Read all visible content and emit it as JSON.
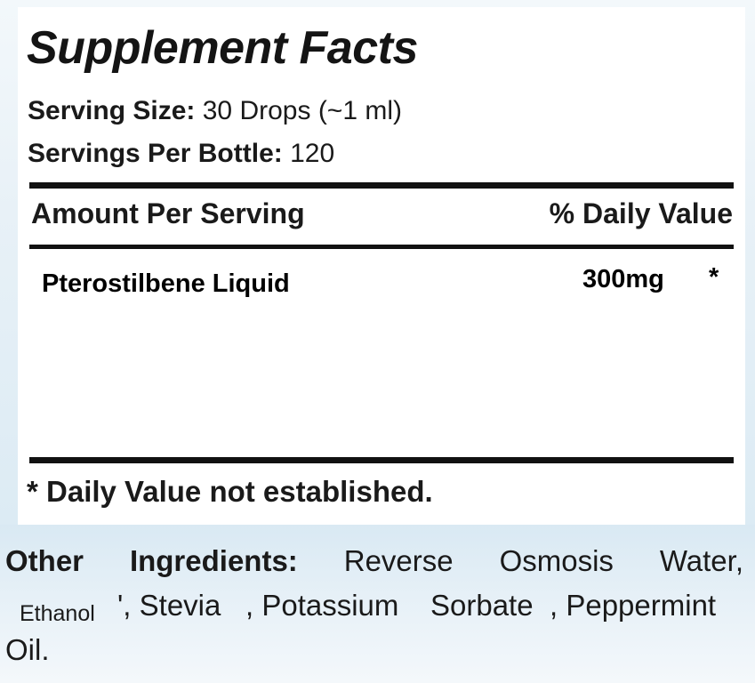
{
  "panel": {
    "title": "Supplement Facts",
    "serving_size_label": "Serving Size:",
    "serving_size_value": "30 Drops (~1 ml)",
    "servings_per_label": "Servings Per Bottle:",
    "servings_per_value": "120",
    "column_left": "Amount Per Serving",
    "column_right": "% Daily Value",
    "ingredients": [
      {
        "name": "Pterostilbene Liquid",
        "amount": "300mg",
        "daily_value": "*"
      }
    ],
    "footnote": "* Daily Value not established."
  },
  "other_ingredients": {
    "label_word1": "Other",
    "label_word2": "Ingredients:",
    "line1_items": [
      "Reverse",
      "Osmosis",
      "Water,"
    ],
    "ethanol": "Ethanol",
    "line2_a": "', Stevia",
    "line2_b": ", Potassium",
    "line2_c": "Sorbate",
    "line2_d": ", Peppermint",
    "line3": "Oil."
  }
}
